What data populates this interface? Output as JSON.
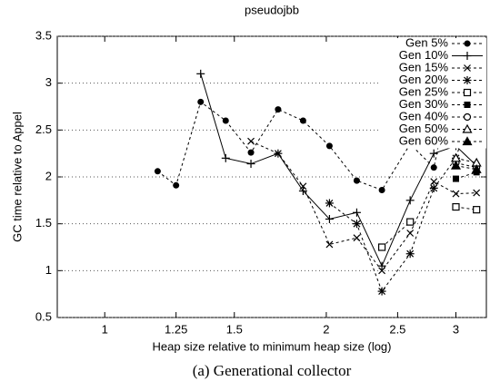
{
  "chart_data": {
    "type": "line",
    "title": "pseudojbb",
    "x_label": "Heap size relative to minimum heap size (log)",
    "y_label": "GC time relative to Appel",
    "caption": "(a) Generational collector",
    "x_scale": "log",
    "xlim": [
      0.862,
      3.3
    ],
    "xticks": [
      1,
      1.25,
      1.5,
      2,
      2.5,
      3
    ],
    "ylim": [
      0.5,
      3.5
    ],
    "yticks": [
      0.5,
      1,
      1.5,
      2,
      2.5,
      3,
      3.5
    ],
    "grid": "y",
    "legend": "upper right",
    "x": [
      1.18,
      1.25,
      1.35,
      1.46,
      1.58,
      1.72,
      1.86,
      2.02,
      2.2,
      2.38,
      2.6,
      2.8,
      3.0,
      3.2
    ],
    "series": [
      {
        "name": "Gen 5%",
        "color": "#000",
        "marker": "circle-filled",
        "line_style": "dashed",
        "values": [
          2.06,
          1.91,
          2.8,
          2.6,
          2.26,
          2.72,
          2.6,
          2.33,
          1.96,
          1.86,
          2.35,
          2.1,
          3.22,
          2.92
        ]
      },
      {
        "name": "Gen 10%",
        "color": "#000",
        "marker": "plus",
        "line_style": "solid",
        "values": [
          null,
          null,
          3.1,
          2.2,
          2.14,
          2.25,
          1.85,
          1.55,
          1.62,
          1.05,
          1.75,
          2.25,
          2.33,
          2.12
        ]
      },
      {
        "name": "Gen 15%",
        "color": "#000",
        "marker": "cross",
        "line_style": "dashed",
        "values": [
          null,
          null,
          null,
          null,
          2.38,
          2.25,
          1.9,
          1.28,
          1.35,
          1.0,
          1.4,
          1.95,
          1.82,
          1.83
        ]
      },
      {
        "name": "Gen 20%",
        "color": "#000",
        "marker": "star",
        "line_style": "dashed",
        "values": [
          null,
          null,
          null,
          null,
          null,
          null,
          null,
          1.72,
          1.5,
          0.78,
          1.18,
          1.88,
          2.2,
          2.92
        ]
      },
      {
        "name": "Gen 25%",
        "color": "#000",
        "marker": "square-open",
        "line_style": "dashed",
        "values": [
          null,
          null,
          null,
          null,
          null,
          null,
          null,
          null,
          null,
          1.25,
          1.52,
          null,
          1.68,
          1.65
        ]
      },
      {
        "name": "Gen 30%",
        "color": "#000",
        "marker": "square-filled",
        "line_style": "dashed",
        "values": [
          null,
          null,
          null,
          null,
          null,
          null,
          null,
          null,
          null,
          null,
          null,
          null,
          1.98,
          2.05
        ]
      },
      {
        "name": "Gen 40%",
        "color": "#000",
        "marker": "circle-open",
        "line_style": "dashed",
        "values": [
          null,
          null,
          null,
          null,
          null,
          null,
          null,
          null,
          null,
          null,
          null,
          null,
          2.15,
          2.1
        ]
      },
      {
        "name": "Gen 50%",
        "color": "#000",
        "marker": "triangle-open",
        "line_style": "dashed",
        "values": [
          null,
          null,
          null,
          null,
          null,
          null,
          null,
          null,
          null,
          null,
          null,
          null,
          2.2,
          2.15
        ]
      },
      {
        "name": "Gen 60%",
        "color": "#000",
        "marker": "triangle-filled",
        "line_style": "dashed",
        "values": [
          null,
          null,
          null,
          null,
          null,
          null,
          null,
          null,
          null,
          null,
          null,
          null,
          2.12,
          2.08
        ]
      }
    ]
  }
}
